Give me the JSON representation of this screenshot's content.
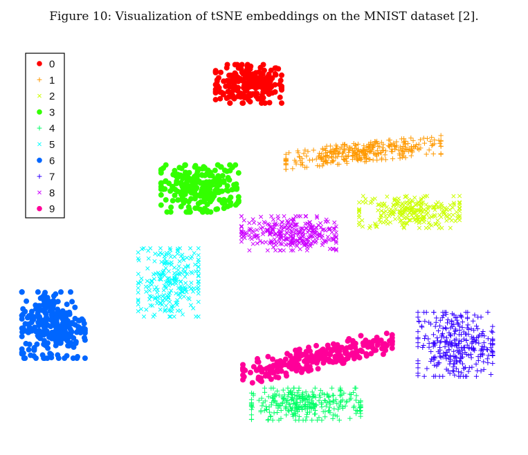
{
  "caption": "Figure 10: Visualization of tSNE embeddings on the MNIST dataset [2].",
  "chart_data": {
    "type": "scatter",
    "title": "",
    "xlabel": "",
    "ylabel": "",
    "axes_visible": false,
    "grid": false,
    "legend_position": "top-left",
    "series": [
      {
        "name": "0",
        "marker": "dot",
        "color": "#ff0000",
        "center": [
          3.2,
          8.5
        ],
        "spread": [
          1.15,
          0.9
        ],
        "points": 220
      },
      {
        "name": "1",
        "marker": "plus",
        "color": "#ff9900",
        "center": [
          7.2,
          5.3
        ],
        "spread": [
          2.7,
          0.45
        ],
        "points": 320,
        "tilt": 0.13
      },
      {
        "name": "2",
        "marker": "cross",
        "color": "#ccff00",
        "center": [
          8.8,
          2.5
        ],
        "spread": [
          1.75,
          0.75
        ],
        "points": 260
      },
      {
        "name": "3",
        "marker": "dot",
        "color": "#33ff00",
        "center": [
          1.5,
          3.6
        ],
        "spread": [
          1.35,
          1.1
        ],
        "points": 260
      },
      {
        "name": "4",
        "marker": "plus",
        "color": "#00ff66",
        "center": [
          5.2,
          -6.5
        ],
        "spread": [
          1.9,
          0.75
        ],
        "points": 300
      },
      {
        "name": "5",
        "marker": "cross",
        "color": "#00ffff",
        "center": [
          0.4,
          -0.8
        ],
        "spread": [
          1.05,
          1.6
        ],
        "points": 240
      },
      {
        "name": "6",
        "marker": "dot",
        "color": "#0066ff",
        "center": [
          -3.6,
          -2.8
        ],
        "spread": [
          1.1,
          1.55
        ],
        "points": 260
      },
      {
        "name": "7",
        "marker": "plus",
        "color": "#3300ff",
        "center": [
          10.4,
          -3.7
        ],
        "spread": [
          1.3,
          1.5
        ],
        "points": 300
      },
      {
        "name": "8",
        "marker": "cross",
        "color": "#cc00ff",
        "center": [
          4.6,
          1.5
        ],
        "spread": [
          1.65,
          0.8
        ],
        "points": 300
      },
      {
        "name": "9",
        "marker": "dot",
        "color": "#ff0099",
        "center": [
          5.6,
          -4.3
        ],
        "spread": [
          2.6,
          0.55
        ],
        "points": 240,
        "tilt": 0.3
      }
    ],
    "xlim": [
      -4.5,
      12.5
    ],
    "ylim": [
      -8.3,
      10.0
    ]
  }
}
